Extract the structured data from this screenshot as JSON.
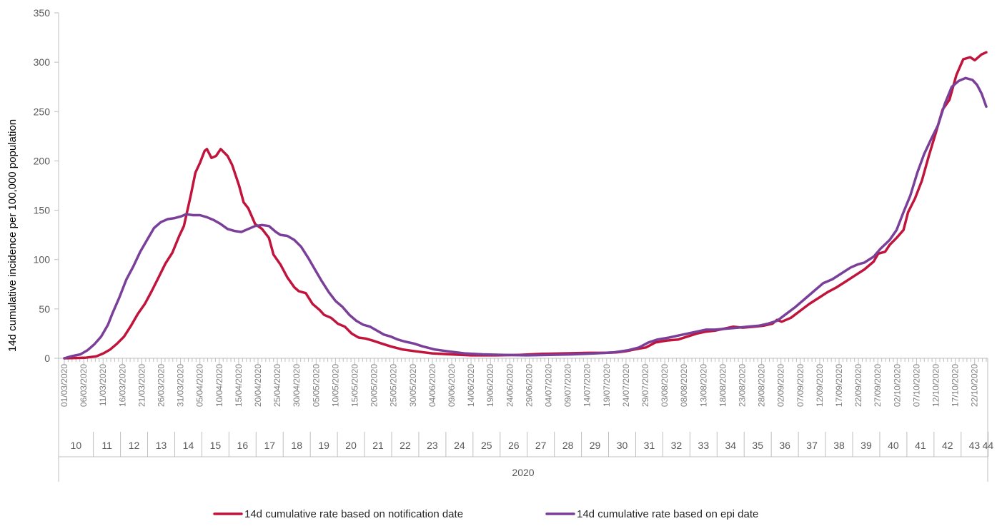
{
  "chart_data": {
    "type": "line",
    "title": "",
    "ylabel": "14d cumulative incidence per 100,000 population",
    "xlabel": "",
    "ylim": [
      0,
      350
    ],
    "yticks": [
      0,
      50,
      100,
      150,
      200,
      250,
      300,
      350
    ],
    "grid": false,
    "legend_position": "bottom",
    "x_start_date": "2020-03-01",
    "x_end_date": "2020-10-25",
    "date_tick_labels": [
      "01/03/2020",
      "06/03/2020",
      "11/03/2020",
      "16/03/2020",
      "21/03/2020",
      "26/03/2020",
      "31/03/2020",
      "05/04/2020",
      "10/04/2020",
      "15/04/2020",
      "20/04/2020",
      "25/04/2020",
      "30/04/2020",
      "05/05/2020",
      "10/05/2020",
      "15/05/2020",
      "20/05/2020",
      "25/05/2020",
      "30/05/2020",
      "04/06/2020",
      "09/06/2020",
      "14/06/2020",
      "19/06/2020",
      "24/06/2020",
      "29/06/2020",
      "04/07/2020",
      "09/07/2020",
      "14/07/2020",
      "19/07/2020",
      "24/07/2020",
      "29/07/2020",
      "03/08/2020",
      "08/08/2020",
      "13/08/2020",
      "18/08/2020",
      "23/08/2020",
      "28/08/2020",
      "02/09/2020",
      "07/09/2020",
      "12/09/2020",
      "17/09/2020",
      "22/09/2020",
      "27/09/2020",
      "02/10/2020",
      "07/10/2020",
      "12/10/2020",
      "17/10/2020",
      "22/10/2020"
    ],
    "week_labels": [
      "10",
      "11",
      "12",
      "13",
      "14",
      "15",
      "16",
      "17",
      "18",
      "19",
      "20",
      "21",
      "22",
      "23",
      "24",
      "25",
      "26",
      "27",
      "28",
      "29",
      "30",
      "31",
      "32",
      "33",
      "34",
      "35",
      "36",
      "37",
      "38",
      "39",
      "40",
      "41",
      "42",
      "43",
      "44"
    ],
    "year_label": "2020",
    "series": [
      {
        "name": "14d cumulative rate based on notification date",
        "color": "#c0143c",
        "points": [
          [
            "2020-03-01",
            0
          ],
          [
            "2020-03-10",
            0.5
          ],
          [
            "2020-03-15",
            2
          ],
          [
            "2020-03-18",
            5
          ],
          [
            "2020-03-21",
            9
          ],
          [
            "2020-03-24",
            15
          ],
          [
            "2020-03-27",
            22
          ],
          [
            "2020-03-30",
            33
          ],
          [
            "2020-04-02",
            45
          ],
          [
            "2020-04-05",
            55
          ],
          [
            "2020-04-08",
            68
          ],
          [
            "2020-04-11",
            82
          ],
          [
            "2020-04-14",
            96
          ],
          [
            "2020-04-17",
            107
          ],
          [
            "2020-04-20",
            124
          ],
          [
            "2020-04-22",
            134
          ],
          [
            "2020-04-25",
            165
          ],
          [
            "2020-04-27",
            188
          ],
          [
            "2020-04-29",
            198
          ],
          [
            "2020-05-01",
            210
          ],
          [
            "2020-05-02",
            212
          ],
          [
            "2020-05-04",
            203
          ],
          [
            "2020-05-06",
            205
          ],
          [
            "2020-05-08",
            212
          ],
          [
            "2020-05-11",
            205
          ],
          [
            "2020-05-13",
            196
          ],
          [
            "2020-05-16",
            175
          ],
          [
            "2020-05-18",
            158
          ],
          [
            "2020-05-20",
            152
          ],
          [
            "2020-05-23",
            136
          ],
          [
            "2020-05-26",
            131
          ],
          [
            "2020-05-29",
            122
          ],
          [
            "2020-05-31",
            105
          ],
          [
            "2020-06-03",
            95
          ],
          [
            "2020-06-06",
            82
          ],
          [
            "2020-06-09",
            72
          ],
          [
            "2020-06-11",
            68
          ],
          [
            "2020-06-14",
            66
          ],
          [
            "2020-06-17",
            55
          ],
          [
            "2020-06-20",
            49
          ],
          [
            "2020-06-22",
            44
          ],
          [
            "2020-06-25",
            41
          ],
          [
            "2020-06-28",
            35
          ],
          [
            "2020-07-01",
            32
          ],
          [
            "2020-07-04",
            25
          ],
          [
            "2020-07-07",
            21
          ],
          [
            "2020-07-10",
            20
          ],
          [
            "2020-07-13",
            18
          ],
          [
            "2020-07-17",
            15
          ],
          [
            "2020-07-21",
            12
          ],
          [
            "2020-07-26",
            9
          ],
          [
            "2020-08-01",
            7
          ],
          [
            "2020-08-08",
            5
          ],
          [
            "2020-08-16",
            4
          ],
          [
            "2020-08-25",
            3
          ],
          [
            "2020-09-05",
            3
          ],
          [
            "2020-09-15",
            3.5
          ],
          [
            "2020-09-25",
            4.5
          ],
          [
            "2020-10-05",
            5
          ],
          [
            "2020-10-15",
            5.5
          ],
          [
            "2020-10-22",
            5.5
          ],
          [
            "2020-10-27",
            6
          ],
          [
            "2020-10-31",
            7
          ],
          [
            "2020-11-04",
            9
          ],
          [
            "2020-11-09",
            11
          ],
          [
            "2020-11-13",
            16
          ],
          [
            "2020-11-18",
            18
          ],
          [
            "2020-11-23",
            19
          ],
          [
            "2020-11-27",
            22
          ],
          [
            "2020-12-01",
            25
          ],
          [
            "2020-12-05",
            27
          ],
          [
            "2020-12-09",
            28
          ],
          [
            "2020-12-13",
            30
          ],
          [
            "2020-12-17",
            32
          ],
          [
            "2020-12-21",
            31
          ],
          [
            "2020-12-26",
            32
          ],
          [
            "2020-12-30",
            33
          ],
          [
            "2021-01-03",
            35
          ],
          [
            "2021-01-05",
            39
          ],
          [
            "2021-01-07",
            37
          ],
          [
            "2021-01-11",
            41
          ],
          [
            "2021-01-15",
            48
          ],
          [
            "2021-01-19",
            55
          ],
          [
            "2021-01-23",
            61
          ],
          [
            "2021-01-27",
            67
          ],
          [
            "2021-01-31",
            72
          ],
          [
            "2021-02-04",
            78
          ],
          [
            "2021-02-08",
            84
          ],
          [
            "2021-02-12",
            90
          ],
          [
            "2021-02-16",
            98
          ],
          [
            "2021-02-18",
            106
          ],
          [
            "2021-02-21",
            108
          ],
          [
            "2021-02-23",
            115
          ],
          [
            "2021-02-26",
            122
          ],
          [
            "2021-03-01",
            130
          ],
          [
            "2021-03-03",
            148
          ],
          [
            "2021-03-06",
            162
          ],
          [
            "2021-03-09",
            180
          ],
          [
            "2021-03-12",
            205
          ],
          [
            "2021-03-15",
            228
          ],
          [
            "2021-03-18",
            252
          ],
          [
            "2021-03-21",
            262
          ],
          [
            "2021-03-24",
            287
          ],
          [
            "2021-03-27",
            303
          ],
          [
            "2021-03-30",
            305
          ],
          [
            "2021-04-01",
            302
          ],
          [
            "2021-04-04",
            308
          ],
          [
            "2021-04-06",
            310
          ]
        ]
      },
      {
        "name": "14d cumulative rate based on epi date",
        "color": "#7a3f98",
        "points": [
          [
            "2020-03-01",
            0
          ],
          [
            "2020-03-04",
            2
          ],
          [
            "2020-03-08",
            4
          ],
          [
            "2020-03-11",
            8
          ],
          [
            "2020-03-14",
            14
          ],
          [
            "2020-03-17",
            22
          ],
          [
            "2020-03-20",
            34
          ],
          [
            "2020-03-22",
            46
          ],
          [
            "2020-03-25",
            62
          ],
          [
            "2020-03-28",
            80
          ],
          [
            "2020-03-31",
            93
          ],
          [
            "2020-04-03",
            108
          ],
          [
            "2020-04-06",
            120
          ],
          [
            "2020-04-09",
            132
          ],
          [
            "2020-04-12",
            138
          ],
          [
            "2020-04-15",
            141
          ],
          [
            "2020-04-18",
            142
          ],
          [
            "2020-04-21",
            144
          ],
          [
            "2020-04-23",
            146
          ],
          [
            "2020-04-26",
            145
          ],
          [
            "2020-04-29",
            145
          ],
          [
            "2020-05-02",
            143
          ],
          [
            "2020-05-05",
            140
          ],
          [
            "2020-05-08",
            136
          ],
          [
            "2020-05-11",
            131
          ],
          [
            "2020-05-14",
            129
          ],
          [
            "2020-05-17",
            128
          ],
          [
            "2020-05-20",
            131
          ],
          [
            "2020-05-23",
            134
          ],
          [
            "2020-05-26",
            135
          ],
          [
            "2020-05-29",
            134
          ],
          [
            "2020-06-01",
            128
          ],
          [
            "2020-06-03",
            125
          ],
          [
            "2020-06-06",
            124
          ],
          [
            "2020-06-09",
            120
          ],
          [
            "2020-06-12",
            113
          ],
          [
            "2020-06-15",
            102
          ],
          [
            "2020-06-18",
            90
          ],
          [
            "2020-06-21",
            78
          ],
          [
            "2020-06-24",
            67
          ],
          [
            "2020-06-27",
            58
          ],
          [
            "2020-06-30",
            52
          ],
          [
            "2020-07-03",
            44
          ],
          [
            "2020-07-06",
            38
          ],
          [
            "2020-07-09",
            34
          ],
          [
            "2020-07-12",
            32
          ],
          [
            "2020-07-15",
            28
          ],
          [
            "2020-07-18",
            24
          ],
          [
            "2020-07-21",
            22
          ],
          [
            "2020-07-24",
            19
          ],
          [
            "2020-07-27",
            17
          ],
          [
            "2020-07-31",
            15
          ],
          [
            "2020-08-04",
            12
          ],
          [
            "2020-08-09",
            9
          ],
          [
            "2020-08-15",
            7
          ],
          [
            "2020-08-22",
            5
          ],
          [
            "2020-08-30",
            4
          ],
          [
            "2020-09-08",
            3.5
          ],
          [
            "2020-09-18",
            3
          ],
          [
            "2020-09-28",
            3.5
          ],
          [
            "2020-10-08",
            4
          ],
          [
            "2020-10-18",
            5
          ],
          [
            "2020-10-26",
            6
          ],
          [
            "2020-11-01",
            8
          ],
          [
            "2020-11-06",
            11
          ],
          [
            "2020-11-10",
            16
          ],
          [
            "2020-11-14",
            19
          ],
          [
            "2020-11-19",
            21
          ],
          [
            "2020-11-23",
            23
          ],
          [
            "2020-11-27",
            25
          ],
          [
            "2020-12-01",
            27
          ],
          [
            "2020-12-05",
            29
          ],
          [
            "2020-12-09",
            29
          ],
          [
            "2020-12-14",
            30
          ],
          [
            "2020-12-19",
            31
          ],
          [
            "2020-12-23",
            32
          ],
          [
            "2020-12-28",
            33
          ],
          [
            "2021-01-01",
            35
          ],
          [
            "2021-01-05",
            38
          ],
          [
            "2021-01-09",
            45
          ],
          [
            "2021-01-13",
            52
          ],
          [
            "2021-01-17",
            60
          ],
          [
            "2021-01-21",
            68
          ],
          [
            "2021-01-25",
            76
          ],
          [
            "2021-01-29",
            80
          ],
          [
            "2021-02-02",
            86
          ],
          [
            "2021-02-06",
            92
          ],
          [
            "2021-02-09",
            95
          ],
          [
            "2021-02-12",
            97
          ],
          [
            "2021-02-16",
            103
          ],
          [
            "2021-02-19",
            111
          ],
          [
            "2021-02-23",
            120
          ],
          [
            "2021-02-26",
            130
          ],
          [
            "2021-03-01",
            148
          ],
          [
            "2021-03-04",
            165
          ],
          [
            "2021-03-07",
            188
          ],
          [
            "2021-03-10",
            207
          ],
          [
            "2021-03-13",
            222
          ],
          [
            "2021-03-16",
            236
          ],
          [
            "2021-03-19",
            258
          ],
          [
            "2021-03-22",
            275
          ],
          [
            "2021-03-25",
            281
          ],
          [
            "2021-03-28",
            284
          ],
          [
            "2021-03-31",
            282
          ],
          [
            "2021-04-02",
            277
          ],
          [
            "2021-04-04",
            268
          ],
          [
            "2021-04-06",
            255
          ]
        ]
      }
    ]
  }
}
